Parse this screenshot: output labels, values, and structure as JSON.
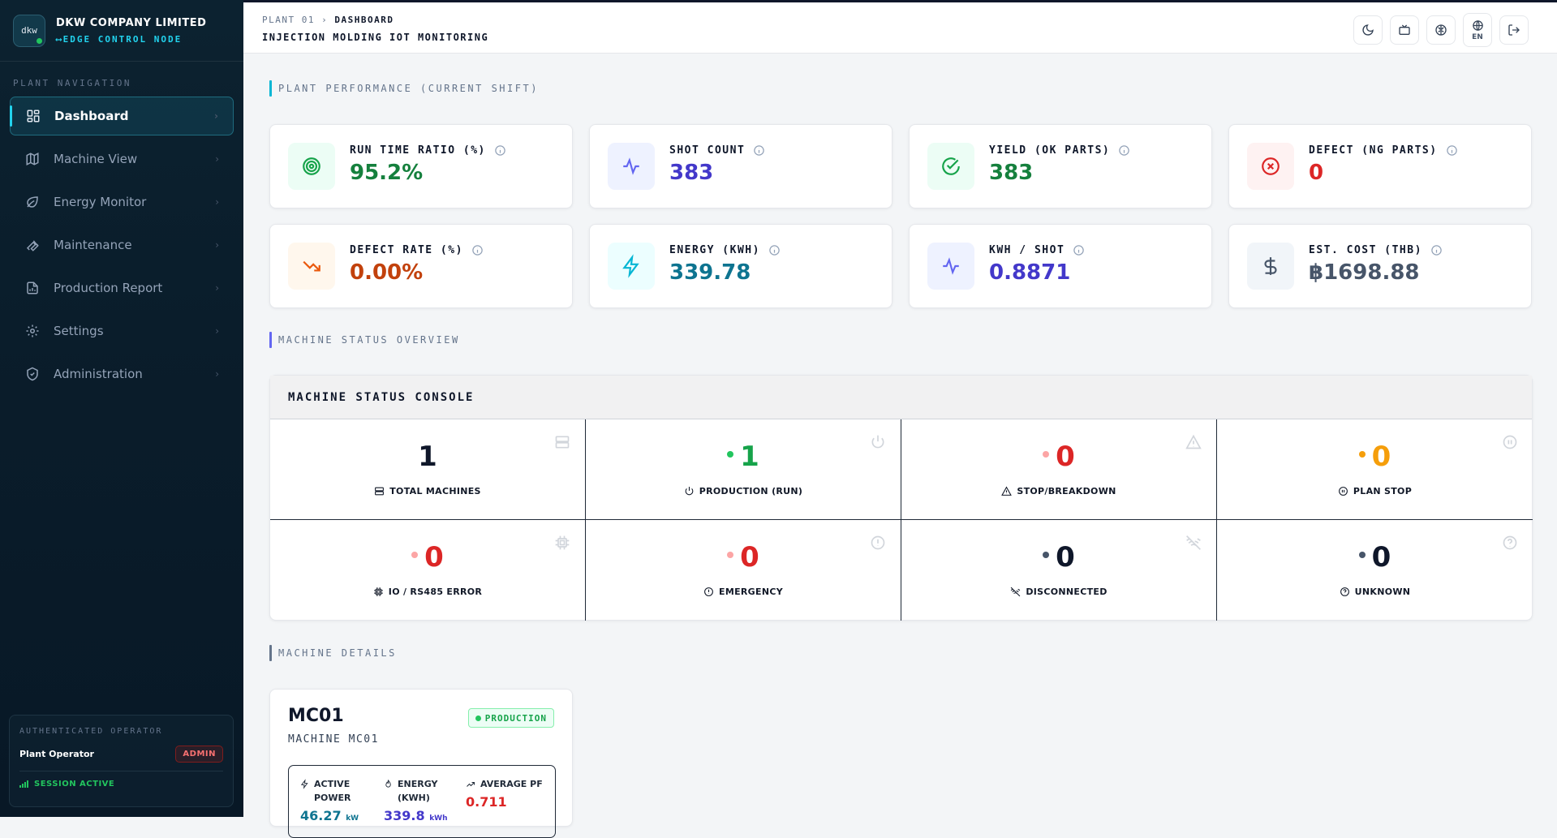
{
  "brand": {
    "name": "DKW COMPANY LIMITED",
    "subtitle": "EDGE CONTROL NODE",
    "logo_text": "dkw"
  },
  "nav": {
    "heading": "PLANT NAVIGATION",
    "items": [
      {
        "label": "Dashboard",
        "icon": "dashboard-icon"
      },
      {
        "label": "Machine View",
        "icon": "map-icon"
      },
      {
        "label": "Energy Monitor",
        "icon": "leaf-icon"
      },
      {
        "label": "Maintenance",
        "icon": "wrench-icon"
      },
      {
        "label": "Production Report",
        "icon": "file-icon"
      },
      {
        "label": "Settings",
        "icon": "gear-icon"
      },
      {
        "label": "Administration",
        "icon": "shield-icon"
      }
    ]
  },
  "operator": {
    "heading": "AUTHENTICATED OPERATOR",
    "name": "Plant Operator",
    "role": "ADMIN",
    "session": "SESSION ACTIVE"
  },
  "header": {
    "crumb_root": "PLANT 01",
    "crumb_sep": "›",
    "crumb_current": "DASHBOARD",
    "title": "INJECTION MOLDING IOT MONITORING",
    "lang": "EN"
  },
  "sections": {
    "performance": "PLANT PERFORMANCE (CURRENT SHIFT)",
    "status": "MACHINE STATUS OVERVIEW",
    "details": "MACHINE DETAILS"
  },
  "kpis": [
    {
      "label": "RUN TIME RATIO (%)",
      "value": "95.2%",
      "color": "#15803d",
      "icon": "target-icon"
    },
    {
      "label": "SHOT COUNT",
      "value": "383",
      "color": "#4338ca",
      "icon": "activity-icon"
    },
    {
      "label": "YIELD (OK PARTS)",
      "value": "383",
      "color": "#15803d",
      "icon": "check-circle-icon"
    },
    {
      "label": "DEFECT (NG PARTS)",
      "value": "0",
      "color": "#dc2626",
      "icon": "x-circle-icon"
    },
    {
      "label": "DEFECT RATE (%)",
      "value": "0.00%",
      "color": "#c2410c",
      "icon": "trending-down-icon"
    },
    {
      "label": "ENERGY (KWH)",
      "value": "339.78",
      "color": "#0e7490",
      "icon": "zap-icon"
    },
    {
      "label": "KWH / SHOT",
      "value": "0.8871",
      "color": "#4338ca",
      "icon": "activity-icon"
    },
    {
      "label": "EST. COST (THB)",
      "value": "฿1698.88",
      "color": "#475569",
      "icon": "dollar-icon"
    }
  ],
  "console": {
    "title": "MACHINE STATUS CONSOLE",
    "cells": [
      {
        "label": "TOTAL MACHINES",
        "value": "1",
        "color": "#0f172a",
        "dot": ""
      },
      {
        "label": "PRODUCTION (RUN)",
        "value": "1",
        "color": "#16a34a",
        "dot": "#22c55e"
      },
      {
        "label": "STOP/BREAKDOWN",
        "value": "0",
        "color": "#dc2626",
        "dot": "#fca5a5"
      },
      {
        "label": "PLAN STOP",
        "value": "0",
        "color": "#f59e0b",
        "dot": "#f59e0b"
      },
      {
        "label": "IO / RS485 ERROR",
        "value": "0",
        "color": "#dc2626",
        "dot": "#fca5a5"
      },
      {
        "label": "EMERGENCY",
        "value": "0",
        "color": "#dc2626",
        "dot": "#fca5a5"
      },
      {
        "label": "DISCONNECTED",
        "value": "0",
        "color": "#0f172a",
        "dot": "#475569"
      },
      {
        "label": "UNKNOWN",
        "value": "0",
        "color": "#0f172a",
        "dot": "#475569"
      }
    ]
  },
  "machine": {
    "id": "MC01",
    "name": "MACHINE MC01",
    "status": "PRODUCTION",
    "metrics": [
      {
        "label_1": "ACTIVE",
        "label_2": "POWER",
        "value": "46.27",
        "unit": "kW",
        "color": "#0e7490"
      },
      {
        "label_1": "ENERGY",
        "label_2": "(KWH)",
        "value": "339.8",
        "unit": "kWh",
        "color": "#4338ca"
      },
      {
        "label_1": "AVERAGE PF",
        "label_2": "",
        "value": "0.711",
        "unit": "",
        "color": "#dc2626"
      }
    ]
  }
}
